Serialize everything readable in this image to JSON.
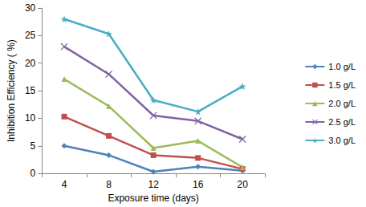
{
  "chart_data": {
    "type": "line",
    "x_label": "Exposure time (days)",
    "y_label": "Inhibition Efficiency ( %)",
    "categories": [
      "4",
      "8",
      "12",
      "16",
      "20"
    ],
    "ylim": [
      0,
      30
    ],
    "yticks": [
      0,
      5,
      10,
      15,
      20,
      25,
      30
    ],
    "grid": false,
    "legend": "right",
    "series": [
      {
        "name": "1.0 g/L",
        "color": "#4f81bd",
        "marker": "diamond",
        "values": [
          5.0,
          3.3,
          0.3,
          1.2,
          0.5
        ]
      },
      {
        "name": "1.5 g/L",
        "color": "#c0504d",
        "marker": "square",
        "values": [
          10.3,
          6.8,
          3.3,
          2.8,
          0.8
        ]
      },
      {
        "name": "2.0 g/L",
        "color": "#9bbb59",
        "marker": "triangle",
        "values": [
          17.1,
          12.2,
          4.6,
          5.9,
          1.1
        ]
      },
      {
        "name": "2.5 g/L",
        "color": "#8064a2",
        "marker": "x",
        "values": [
          23.0,
          18.0,
          10.5,
          9.5,
          6.2
        ]
      },
      {
        "name": "3.0 g/L",
        "color": "#4bacc6",
        "marker": "star",
        "values": [
          28.0,
          25.3,
          13.3,
          11.2,
          15.8
        ]
      }
    ]
  }
}
